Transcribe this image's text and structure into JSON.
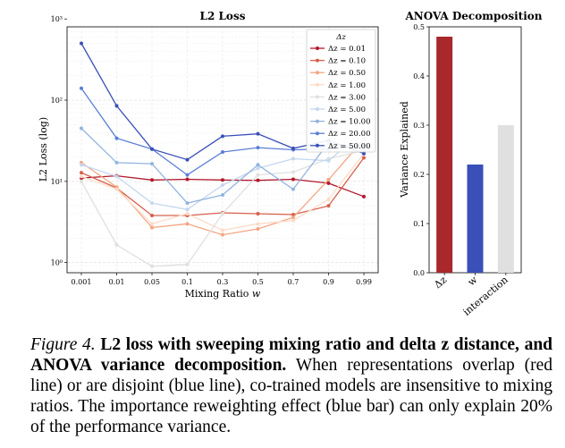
{
  "chart_data": [
    {
      "type": "line",
      "title": "L2 Loss",
      "xlabel": "Mixing Ratio w",
      "ylabel": "L2 Loss (log)",
      "yscale": "log",
      "ylim": [
        0.75,
        800
      ],
      "y_ticks": [
        {
          "value": 1,
          "label": "10⁰"
        },
        {
          "value": 10,
          "label": "10¹"
        },
        {
          "value": 100,
          "label": "10²"
        },
        {
          "value": 1000,
          "label": "10³"
        }
      ],
      "categories": [
        "0.001",
        "0.01",
        "0.05",
        "0.1",
        "0.3",
        "0.5",
        "0.7",
        "0.9",
        "0.99"
      ],
      "legend_title": "Δz",
      "legend_location": "top-right",
      "grid": true,
      "series": [
        {
          "name": "Δz = 0.01",
          "color": "#b2182b",
          "values": [
            11.0,
            11.7,
            10.4,
            10.6,
            10.4,
            10.3,
            10.6,
            9.5,
            6.5
          ]
        },
        {
          "name": "Δz = 0.10",
          "color": "#d6604d",
          "values": [
            12.8,
            8.3,
            3.8,
            3.8,
            4.1,
            4.0,
            3.9,
            5.0,
            19.5
          ]
        },
        {
          "name": "Δz = 0.50",
          "color": "#f4a582",
          "values": [
            17.0,
            8.5,
            2.7,
            3.0,
            2.2,
            2.6,
            3.6,
            10.5,
            33.0
          ]
        },
        {
          "name": "Δz = 1.00",
          "color": "#fddbc7",
          "values": [
            11.5,
            8.0,
            3.0,
            4.0,
            2.5,
            3.0,
            3.3,
            6.0,
            22.0
          ]
        },
        {
          "name": "Δz = 3.00",
          "color": "#e0e0e0",
          "values": [
            10.0,
            1.65,
            0.9,
            0.95,
            4.0,
            12.0,
            13.0,
            19.0,
            24.0
          ]
        },
        {
          "name": "Δz = 5.00",
          "color": "#c4d7ef",
          "values": [
            16.0,
            11.5,
            5.4,
            4.5,
            9.0,
            14.5,
            19.0,
            18.0,
            42.0
          ]
        },
        {
          "name": "Δz = 10.00",
          "color": "#92b4e0",
          "values": [
            45.0,
            17.0,
            16.5,
            5.4,
            6.8,
            16.0,
            8.0,
            30.0,
            24.0
          ]
        },
        {
          "name": "Δz = 20.00",
          "color": "#5b7fd6",
          "values": [
            140.0,
            34.0,
            25.0,
            12.0,
            23.0,
            26.0,
            24.5,
            25.0,
            28.0
          ]
        },
        {
          "name": "Δz = 50.00",
          "color": "#3a4fb8",
          "values": [
            500.0,
            85.0,
            25.0,
            18.5,
            36.0,
            38.5,
            25.5,
            32.0,
            22.0
          ]
        }
      ]
    },
    {
      "type": "bar",
      "title": "ANOVA Decomposition",
      "ylabel": "Variance Explained",
      "ylim": [
        0,
        0.5
      ],
      "y_ticks": [
        "0.0",
        "0.1",
        "0.2",
        "0.3",
        "0.4",
        "0.5"
      ],
      "categories": [
        "Δz",
        "w",
        "interaction"
      ],
      "values": [
        0.48,
        0.22,
        0.3
      ],
      "colors": [
        "#a8282c",
        "#3a4fb8",
        "#e0e0e0"
      ]
    }
  ],
  "caption": {
    "label": "Figure 4.",
    "title": "L2 loss with sweeping mixing ratio and delta z distance, and ANOVA variance decomposition.",
    "body": "When representations overlap (red line) or are disjoint (blue line), co-trained models are insensitive to mixing ratios. The importance reweighting effect (blue bar) can only explain 20% of the performance variance."
  }
}
